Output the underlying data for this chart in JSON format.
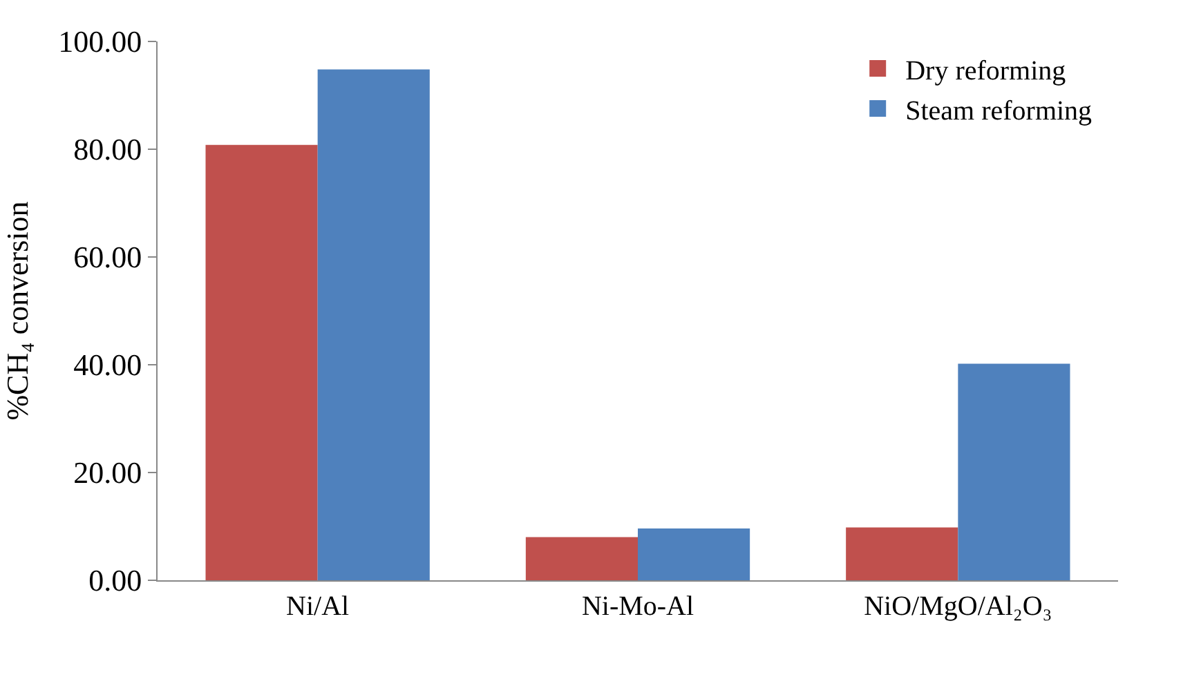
{
  "chart_data": {
    "type": "bar",
    "ylabel": "%CH₄ conversion",
    "categories": [
      "Ni/Al",
      "Ni-Mo-Al",
      "NiO/MgO/Al₂O₃"
    ],
    "series": [
      {
        "name": "Dry reforming",
        "color": "#c0504d",
        "values": [
          80.8,
          8.0,
          9.8
        ]
      },
      {
        "name": "Steam reforming",
        "color": "#4f81bd",
        "values": [
          94.8,
          9.6,
          40.2
        ]
      }
    ],
    "ylim": [
      0,
      100
    ],
    "yticks": [
      {
        "value": 0,
        "label": "0.00"
      },
      {
        "value": 20,
        "label": "20.00"
      },
      {
        "value": 40,
        "label": "40.00"
      },
      {
        "value": 60,
        "label": "60.00"
      },
      {
        "value": 80,
        "label": "80.00"
      },
      {
        "value": 100,
        "label": "100.00"
      }
    ],
    "legend": "top right"
  }
}
